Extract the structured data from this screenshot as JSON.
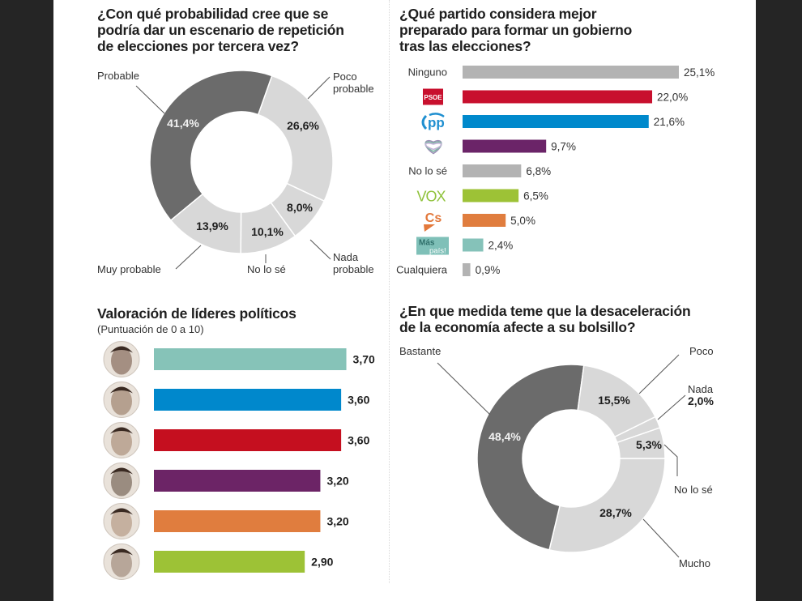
{
  "chart_data": [
    {
      "id": "repeticion",
      "type": "pie",
      "variant": "donut",
      "title": "¿Con qué probabilidad cree que se podría dar un escenario de repetición de elecciones por tercera vez?",
      "title_lines": [
        "¿Con qué probabilidad cree que se",
        "podría dar un escenario de repetición",
        "de elecciones por tercera vez?"
      ],
      "slices": [
        {
          "label": "Poco probable",
          "label_lines": [
            "Poco",
            "probable"
          ],
          "value": 26.6,
          "display": "26,6%",
          "color": "#d8d8d8"
        },
        {
          "label": "Nada probable",
          "label_lines": [
            "Nada",
            "probable"
          ],
          "value": 8.0,
          "display": "8,0%",
          "color": "#d8d8d8"
        },
        {
          "label": "No lo sé",
          "label_lines": [
            "No lo sé"
          ],
          "value": 10.1,
          "display": "10,1%",
          "color": "#d8d8d8"
        },
        {
          "label": "Muy probable",
          "label_lines": [
            "Muy probable"
          ],
          "value": 13.9,
          "display": "13,9%",
          "color": "#d8d8d8"
        },
        {
          "label": "Probable",
          "label_lines": [
            "Probable"
          ],
          "value": 41.4,
          "display": "41,4%",
          "color": "#6b6b6b"
        }
      ]
    },
    {
      "id": "partido",
      "type": "bar",
      "orientation": "horizontal",
      "title": "¿Qué partido considera mejor preparado para formar un gobierno tras las elecciones?",
      "title_lines": [
        "¿Qué partido considera mejor",
        "preparado para formar un gobierno",
        "tras las elecciones?"
      ],
      "unit": "%",
      "categories": [
        "Ninguno",
        "PSOE",
        "PP",
        "Unidas Podemos",
        "No lo sé",
        "Vox",
        "Ciudadanos",
        "Más País",
        "Cualquiera"
      ],
      "values": [
        25.1,
        22.0,
        21.6,
        9.7,
        6.8,
        6.5,
        5.0,
        2.4,
        0.9
      ],
      "display": [
        "25,1%",
        "22,0%",
        "21,6%",
        "9,7%",
        "6,8%",
        "6,5%",
        "5,0%",
        "2,4%",
        "0,9%"
      ],
      "category_marks": [
        {
          "kind": "text",
          "text": "Ninguno"
        },
        {
          "kind": "logo",
          "icon": "psoe-logo-icon",
          "text": "PSOE",
          "color": "#c8102e"
        },
        {
          "kind": "logo",
          "icon": "pp-logo-icon",
          "text": "pp",
          "color": "#1f8fd0"
        },
        {
          "kind": "logo",
          "icon": "podemos-heart-logo-icon",
          "color": "#8c7fa5"
        },
        {
          "kind": "text",
          "text": "No lo sé"
        },
        {
          "kind": "logo",
          "icon": "vox-logo-icon",
          "text": "VOX",
          "color": "#8fc23b"
        },
        {
          "kind": "logo",
          "icon": "cs-logo-icon",
          "text": "Cs",
          "color": "#e3783b"
        },
        {
          "kind": "logo",
          "icon": "mas-pais-logo-icon",
          "text": "Más",
          "text2": "país!",
          "color": "#7fc0b8"
        },
        {
          "kind": "text",
          "text": "Cualquiera"
        }
      ],
      "colors": [
        "#b3b3b3",
        "#c8102e",
        "#0089cc",
        "#6b2468",
        "#b3b3b3",
        "#9dc236",
        "#e07d3e",
        "#85c2b9",
        "#b3b3b3"
      ],
      "xlim": [
        0,
        25.1
      ]
    },
    {
      "id": "lideres",
      "type": "bar",
      "orientation": "horizontal",
      "title": "Valoración de líderes políticos",
      "subtitle": "(Puntuación de 0 a 10)",
      "categories": [
        "Leader 1",
        "Leader 2",
        "Leader 3",
        "Leader 4",
        "Leader 5",
        "Leader 6"
      ],
      "values": [
        3.7,
        3.6,
        3.6,
        3.2,
        3.2,
        2.9
      ],
      "display": [
        "3,70",
        "3,60",
        "3,60",
        "3,20",
        "3,20",
        "2,90"
      ],
      "colors": [
        "#86c3b8",
        "#0088cc",
        "#c50f1f",
        "#6c2466",
        "#e07d3e",
        "#9dc236"
      ],
      "avatar_tones": [
        "#6b4a3a",
        "#8a6a52",
        "#9b7a63",
        "#5a4636",
        "#a88670",
        "#8e7564"
      ],
      "xlim": [
        0,
        10
      ]
    },
    {
      "id": "desaceleracion",
      "type": "pie",
      "variant": "donut",
      "title": "¿En que medida teme que la desaceleración de la economía afecte a su bolsillo?",
      "title_lines": [
        "¿En que medida teme que la desaceleración",
        "de la economía afecte a su bolsillo?"
      ],
      "slices": [
        {
          "label": "Mucho",
          "label_lines": [
            "Mucho"
          ],
          "value": 28.7,
          "display": "28,7%",
          "color": "#d8d8d8"
        },
        {
          "label": "Bastante",
          "label_lines": [
            "Bastante"
          ],
          "value": 48.4,
          "display": "48,4%",
          "color": "#6b6b6b"
        },
        {
          "label": "Poco",
          "label_lines": [
            "Poco"
          ],
          "value": 15.5,
          "display": "15,5%",
          "color": "#d8d8d8"
        },
        {
          "label": "Nada",
          "label_lines": [
            "Nada"
          ],
          "value": 2.0,
          "display": "2,0%",
          "color": "#d8d8d8"
        },
        {
          "label": "No lo sé",
          "label_lines": [
            "No lo sé"
          ],
          "value": 5.3,
          "display": "5,3%",
          "color": "#d8d8d8"
        }
      ]
    }
  ]
}
